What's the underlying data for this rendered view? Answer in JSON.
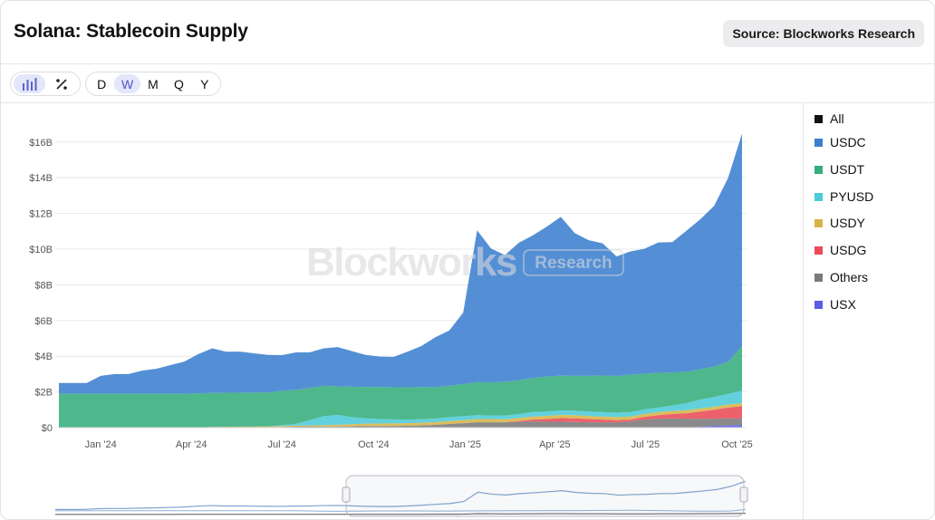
{
  "header": {
    "title": "Solana: Stablecoin Supply",
    "source": "Source: Blockworks Research"
  },
  "toolbar": {
    "chart_icons": [
      {
        "icon": "bar-chart-icon",
        "active": true
      },
      {
        "icon": "percent-icon",
        "active": false
      }
    ],
    "intervals": [
      {
        "label": "D",
        "active": false
      },
      {
        "label": "W",
        "active": true
      },
      {
        "label": "M",
        "active": false
      },
      {
        "label": "Q",
        "active": false
      },
      {
        "label": "Y",
        "active": false
      }
    ]
  },
  "watermark": {
    "brand": "Blockworks",
    "tag": "Research"
  },
  "colors": {
    "All": "#111111",
    "USDC": "#3c7fcf",
    "USDT": "#35ad7c",
    "PYUSD": "#4dcbd8",
    "USDY": "#d6b447",
    "USDG": "#ea4b58",
    "Others": "#7a7a7a",
    "USX": "#5a5ee6"
  },
  "chart_data": {
    "type": "area",
    "stacked": true,
    "x_labels": [
      "Jan '24",
      "Apr '24",
      "Jul '24",
      "Oct '24",
      "Jan '25",
      "Apr '25",
      "Jul '25",
      "Oct '25"
    ],
    "y_ticks": [
      "$0",
      "$2B",
      "$4B",
      "$6B",
      "$8B",
      "$10B",
      "$12B",
      "$14B",
      "$16B"
    ],
    "ylim": [
      0,
      16.8
    ],
    "unit": "B USD",
    "grid": true,
    "legend": [
      "All",
      "USDC",
      "USDT",
      "PYUSD",
      "USDY",
      "USDG",
      "Others",
      "USX"
    ],
    "legend_position": "right",
    "x": [
      "2023-11-20",
      "2023-12-04",
      "2023-12-18",
      "2024-01-01",
      "2024-01-15",
      "2024-01-29",
      "2024-02-12",
      "2024-02-26",
      "2024-03-11",
      "2024-03-25",
      "2024-04-08",
      "2024-04-22",
      "2024-05-06",
      "2024-05-20",
      "2024-06-03",
      "2024-06-17",
      "2024-07-01",
      "2024-07-15",
      "2024-07-29",
      "2024-08-12",
      "2024-08-26",
      "2024-09-09",
      "2024-09-23",
      "2024-10-07",
      "2024-10-21",
      "2024-11-04",
      "2024-11-18",
      "2024-12-02",
      "2024-12-16",
      "2024-12-30",
      "2025-01-13",
      "2025-01-27",
      "2025-02-10",
      "2025-02-24",
      "2025-03-10",
      "2025-03-24",
      "2025-04-07",
      "2025-04-21",
      "2025-05-05",
      "2025-05-19",
      "2025-06-02",
      "2025-06-16",
      "2025-06-30",
      "2025-07-14",
      "2025-07-28",
      "2025-08-11",
      "2025-08-25",
      "2025-09-08",
      "2025-09-22",
      "2025-10-06"
    ],
    "series": [
      {
        "name": "USX",
        "values": [
          0,
          0,
          0,
          0,
          0,
          0,
          0,
          0,
          0,
          0,
          0,
          0,
          0,
          0,
          0,
          0,
          0,
          0,
          0,
          0,
          0,
          0,
          0,
          0,
          0,
          0,
          0,
          0,
          0,
          0,
          0,
          0,
          0,
          0,
          0,
          0,
          0,
          0,
          0,
          0,
          0,
          0,
          0,
          0,
          0,
          0,
          0.05,
          0.1,
          0.12,
          0.15
        ]
      },
      {
        "name": "Others",
        "values": [
          0,
          0,
          0,
          0,
          0,
          0,
          0,
          0,
          0,
          0,
          0,
          0.02,
          0.02,
          0.03,
          0.03,
          0.03,
          0.04,
          0.05,
          0.05,
          0.06,
          0.06,
          0.07,
          0.08,
          0.08,
          0.09,
          0.1,
          0.12,
          0.15,
          0.2,
          0.25,
          0.3,
          0.3,
          0.3,
          0.32,
          0.35,
          0.33,
          0.33,
          0.32,
          0.3,
          0.3,
          0.3,
          0.35,
          0.45,
          0.5,
          0.52,
          0.5,
          0.45,
          0.4,
          0.4,
          0.35
        ]
      },
      {
        "name": "USDG",
        "values": [
          0,
          0,
          0,
          0,
          0,
          0,
          0,
          0,
          0,
          0,
          0,
          0,
          0,
          0,
          0,
          0,
          0,
          0,
          0,
          0,
          0,
          0,
          0,
          0,
          0,
          0,
          0,
          0,
          0,
          0,
          0,
          0,
          0,
          0.05,
          0.1,
          0.15,
          0.2,
          0.2,
          0.18,
          0.15,
          0.12,
          0.1,
          0.15,
          0.2,
          0.25,
          0.3,
          0.4,
          0.5,
          0.6,
          0.7
        ]
      },
      {
        "name": "USDY",
        "values": [
          0,
          0,
          0,
          0,
          0,
          0,
          0,
          0,
          0,
          0,
          0.02,
          0.02,
          0.03,
          0.03,
          0.03,
          0.04,
          0.05,
          0.06,
          0.07,
          0.08,
          0.1,
          0.12,
          0.14,
          0.15,
          0.15,
          0.15,
          0.15,
          0.16,
          0.17,
          0.17,
          0.18,
          0.18,
          0.17,
          0.17,
          0.17,
          0.18,
          0.18,
          0.18,
          0.17,
          0.17,
          0.17,
          0.17,
          0.17,
          0.17,
          0.17,
          0.17,
          0.17,
          0.17,
          0.17,
          0.17
        ]
      },
      {
        "name": "PYUSD",
        "values": [
          0,
          0,
          0,
          0,
          0,
          0,
          0,
          0,
          0,
          0,
          0,
          0,
          0,
          0,
          0,
          0,
          0.05,
          0.1,
          0.3,
          0.5,
          0.55,
          0.4,
          0.3,
          0.25,
          0.22,
          0.2,
          0.2,
          0.2,
          0.22,
          0.22,
          0.22,
          0.2,
          0.2,
          0.22,
          0.25,
          0.25,
          0.25,
          0.25,
          0.25,
          0.25,
          0.25,
          0.25,
          0.25,
          0.25,
          0.3,
          0.4,
          0.5,
          0.55,
          0.6,
          0.7
        ]
      },
      {
        "name": "USDT",
        "values": [
          1.9,
          1.9,
          1.9,
          1.9,
          1.9,
          1.9,
          1.9,
          1.9,
          1.9,
          1.9,
          1.9,
          1.9,
          1.9,
          1.9,
          1.9,
          1.9,
          1.92,
          1.9,
          1.8,
          1.7,
          1.6,
          1.7,
          1.75,
          1.8,
          1.8,
          1.8,
          1.8,
          1.75,
          1.75,
          1.8,
          1.85,
          1.85,
          1.9,
          1.9,
          1.9,
          1.95,
          1.95,
          1.95,
          2.0,
          2.05,
          2.05,
          2.1,
          2.0,
          1.95,
          1.85,
          1.75,
          1.7,
          1.7,
          1.8,
          2.5
        ]
      },
      {
        "name": "USDC",
        "values": [
          0.6,
          0.6,
          0.6,
          1.0,
          1.1,
          1.1,
          1.3,
          1.4,
          1.6,
          1.8,
          2.2,
          2.5,
          2.3,
          2.3,
          2.2,
          2.1,
          2.0,
          2.1,
          2.0,
          2.1,
          2.2,
          2.0,
          1.8,
          1.7,
          1.7,
          2.0,
          2.3,
          2.8,
          3.1,
          4.0,
          8.5,
          7.5,
          7.1,
          7.7,
          8.0,
          8.4,
          8.9,
          8.0,
          7.6,
          7.4,
          6.7,
          6.9,
          7.0,
          7.3,
          7.3,
          7.9,
          8.4,
          9.0,
          10.3,
          11.9
        ]
      }
    ]
  }
}
